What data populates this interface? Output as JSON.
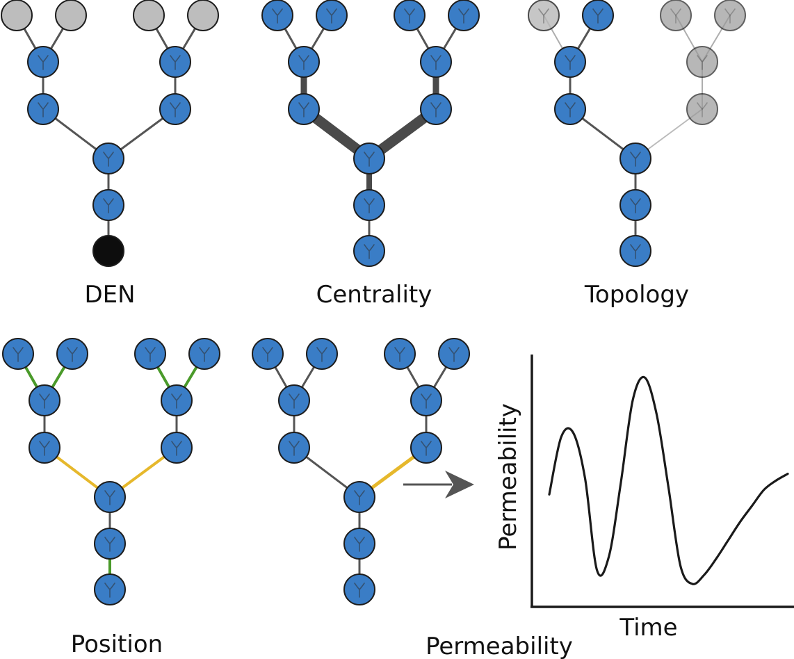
{
  "colors": {
    "node": "#3a7dc6",
    "node_stroke": "#1d1d1d",
    "node_gray": "#bdbdbd",
    "node_black": "#0d0d0d",
    "edge": "#555555",
    "edge_green": "#4a9a2a",
    "edge_yellow": "#e6b82c",
    "arrow": "#555555",
    "axis": "#1a1a1a"
  },
  "panels": {
    "den": {
      "label": "DEN"
    },
    "centrality": {
      "label": "Centrality"
    },
    "topology": {
      "label": "Topology"
    },
    "position": {
      "label": "Position"
    },
    "permeability": {
      "label": "Permeability"
    }
  },
  "plot": {
    "xlabel": "Time",
    "ylabel": "Permeability"
  },
  "chart_data": {
    "type": "line",
    "title": "",
    "xlabel": "Time",
    "ylabel": "Permeability",
    "x": [
      0,
      0.05,
      0.1,
      0.15,
      0.2,
      0.25,
      0.3,
      0.35,
      0.4,
      0.45,
      0.5,
      0.55,
      0.6,
      0.65,
      0.7,
      0.75,
      0.8,
      0.85,
      0.9,
      0.95,
      1.0
    ],
    "series": [
      {
        "values": [
          0.49,
          0.74,
          0.76,
          0.56,
          0.16,
          0.22,
          0.54,
          0.9,
          1.0,
          0.84,
          0.52,
          0.18,
          0.1,
          0.14,
          0.21,
          0.29,
          0.37,
          0.44,
          0.51,
          0.55,
          0.58
        ]
      }
    ],
    "xlim": [
      0,
      1
    ],
    "ylim": [
      0,
      1.1
    ],
    "grid": false,
    "ticks": false
  }
}
